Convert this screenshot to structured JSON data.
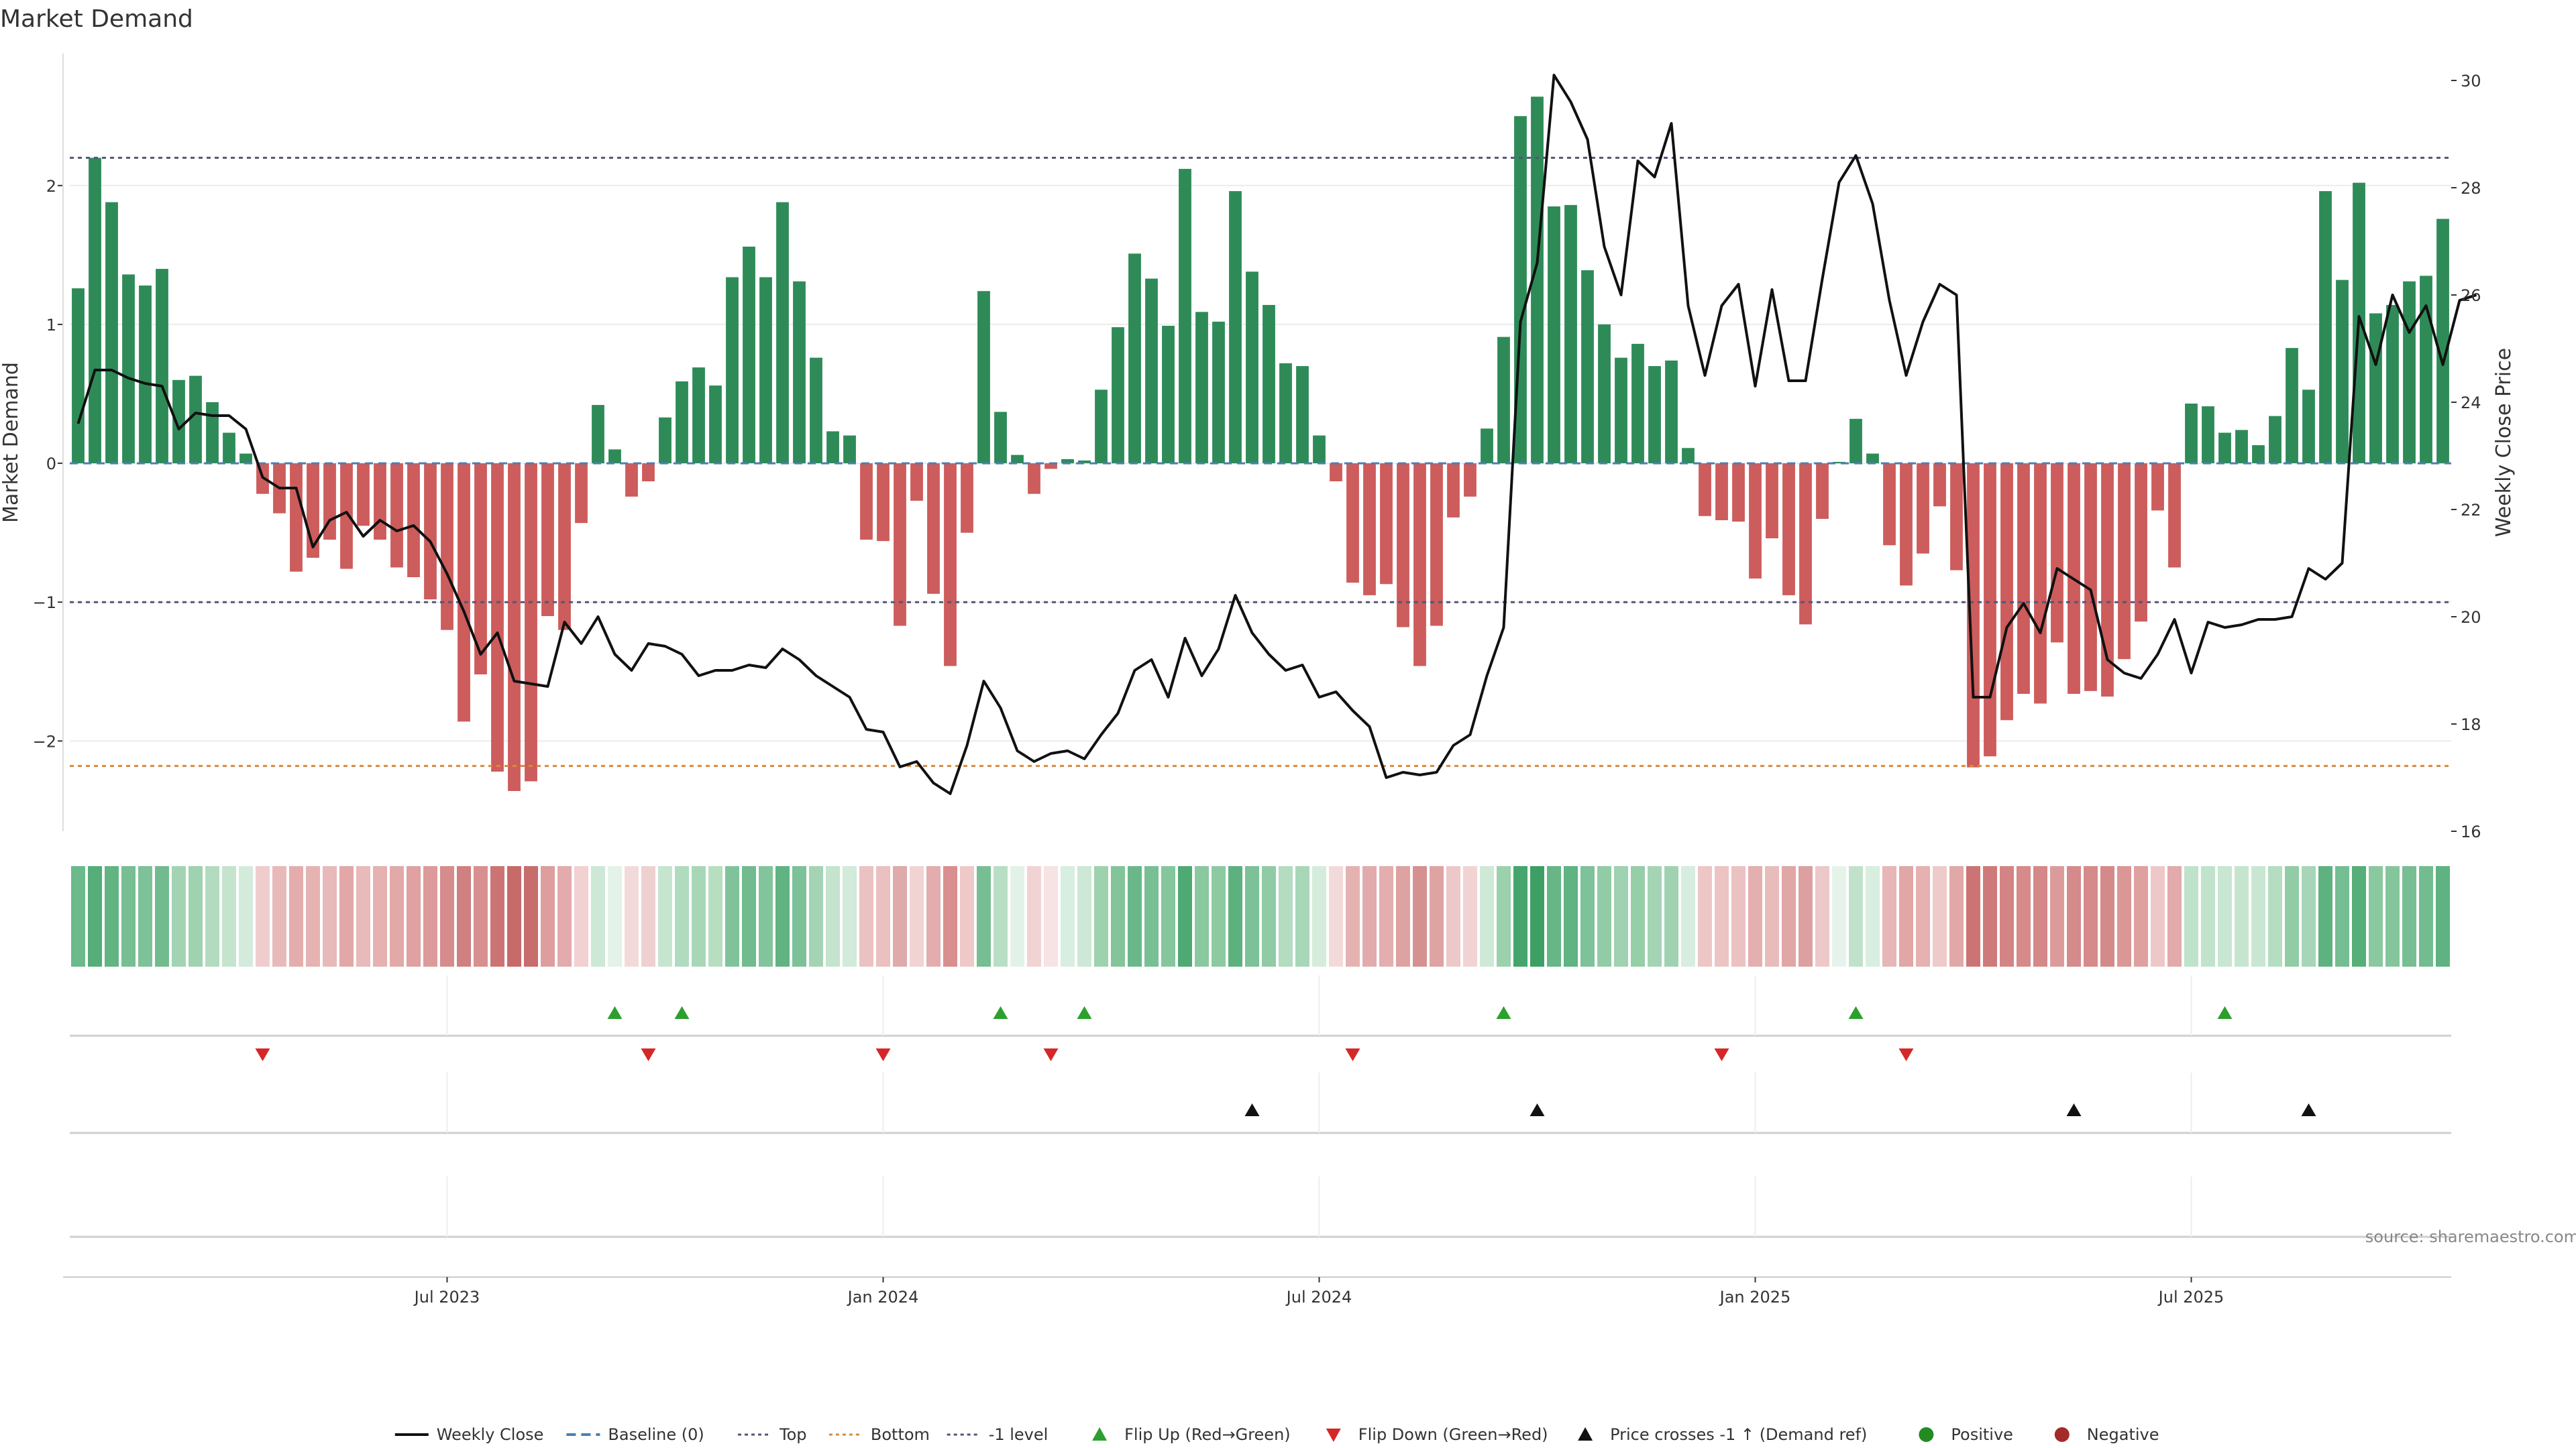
{
  "chart_data": {
    "type": "bar",
    "title": "Market Demand",
    "ylabel_left": "Market Demand",
    "ylabel_right": "Weekly Close Price",
    "source": "source: sharemaestro.com",
    "ylim_left": [
      -2.65,
      2.95
    ],
    "ylim_right": [
      16,
      30.5
    ],
    "yticks_left": [
      {
        "value": -2,
        "label": "−2"
      },
      {
        "value": -1,
        "label": "−1"
      },
      {
        "value": 0,
        "label": "0"
      },
      {
        "value": 1,
        "label": "1"
      },
      {
        "value": 2,
        "label": "2"
      }
    ],
    "yticks_right": [
      {
        "value": 16,
        "label": "16"
      },
      {
        "value": 18,
        "label": "18"
      },
      {
        "value": 20,
        "label": "20"
      },
      {
        "value": 22,
        "label": "22"
      },
      {
        "value": 24,
        "label": "24"
      },
      {
        "value": 26,
        "label": "26"
      },
      {
        "value": 28,
        "label": "28"
      },
      {
        "value": 30,
        "label": "30"
      }
    ],
    "x_ticks": [
      {
        "index": 22,
        "label": "Jul 2023"
      },
      {
        "index": 48,
        "label": "Jan 2024"
      },
      {
        "index": 74,
        "label": "Jul 2024"
      },
      {
        "index": 100,
        "label": "Jan 2025"
      },
      {
        "index": 126,
        "label": "Jul 2025"
      }
    ],
    "reference_lines": [
      {
        "name": "Top",
        "value": 2.2,
        "color": "#555577",
        "dash": "6,6"
      },
      {
        "name": "-1 level",
        "value": -1,
        "color": "#555577",
        "dash": "6,6"
      },
      {
        "name": "Bottom",
        "value": -2.18,
        "color": "#d98a3a",
        "dash": "6,6"
      }
    ],
    "colors": {
      "positive": "#2e8b57",
      "negative": "#cd5c5c",
      "close": "#111111",
      "baseline": "#4a7fb5",
      "flip_up": "#2ca02c",
      "flip_down": "#d62728",
      "cross": "#111111",
      "positive_dot": "#228b22",
      "negative_dot": "#a52a2a"
    },
    "series": [
      {
        "name": "Market Demand",
        "values": [
          1.26,
          2.2,
          1.88,
          1.36,
          1.28,
          1.4,
          0.6,
          0.63,
          0.44,
          0.22,
          0.07,
          -0.22,
          -0.36,
          -0.78,
          -0.68,
          -0.55,
          -0.76,
          -0.45,
          -0.55,
          -0.75,
          -0.82,
          -0.98,
          -1.2,
          -1.86,
          -1.52,
          -2.22,
          -2.36,
          -2.29,
          -1.1,
          -1.2,
          -0.43,
          0.42,
          0.1,
          -0.24,
          -0.13,
          0.33,
          0.59,
          0.69,
          0.56,
          1.34,
          1.56,
          1.34,
          1.88,
          1.31,
          0.76,
          0.23,
          0.2,
          -0.55,
          -0.56,
          -1.17,
          -0.27,
          -0.94,
          -1.46,
          -0.5,
          1.24,
          0.37,
          0.06,
          -0.22,
          -0.04,
          0.03,
          0.02,
          0.53,
          0.98,
          1.51,
          1.33,
          0.99,
          2.12,
          1.09,
          1.02,
          1.96,
          1.38,
          1.14,
          0.72,
          0.7,
          0.2,
          -0.13,
          -0.86,
          -0.95,
          -0.87,
          -1.18,
          -1.46,
          -1.17,
          -0.39,
          -0.24,
          0.25,
          0.91,
          2.5,
          2.64,
          1.85,
          1.86,
          1.39,
          1.0,
          0.76,
          0.86,
          0.7,
          0.74,
          0.11,
          -0.38,
          -0.41,
          -0.42,
          -0.83,
          -0.54,
          -0.95,
          -1.16,
          -0.4,
          0.01,
          0.32,
          0.07,
          -0.59,
          -0.88,
          -0.65,
          -0.31,
          -0.77,
          -2.19,
          -2.11,
          -1.85,
          -1.66,
          -1.73,
          -1.29,
          -1.66,
          -1.64,
          -1.68,
          -1.41,
          -1.14,
          -0.34,
          -0.75,
          0.43,
          0.41,
          0.22,
          0.24,
          0.13,
          0.34,
          0.83,
          0.53,
          1.96,
          1.32,
          2.02,
          1.08,
          1.14,
          1.31,
          1.35,
          1.76
        ]
      },
      {
        "name": "Weekly Close",
        "values": [
          23.6,
          24.6,
          24.6,
          24.45,
          24.35,
          24.3,
          23.5,
          23.8,
          23.75,
          23.75,
          23.5,
          22.6,
          22.4,
          22.4,
          21.3,
          21.8,
          21.95,
          21.5,
          21.8,
          21.6,
          21.7,
          21.4,
          20.8,
          20.1,
          19.3,
          19.7,
          18.8,
          18.75,
          18.7,
          19.9,
          19.5,
          20.0,
          19.3,
          19.0,
          19.5,
          19.45,
          19.3,
          18.9,
          19.0,
          19.0,
          19.1,
          19.05,
          19.4,
          19.2,
          18.9,
          18.7,
          18.5,
          17.9,
          17.85,
          17.2,
          17.3,
          16.9,
          16.7,
          17.6,
          18.8,
          18.3,
          17.5,
          17.3,
          17.45,
          17.5,
          17.35,
          17.8,
          18.2,
          19.0,
          19.2,
          18.5,
          19.6,
          18.9,
          19.4,
          20.4,
          19.7,
          19.3,
          19.0,
          19.1,
          18.5,
          18.6,
          18.25,
          17.95,
          17.0,
          17.1,
          17.05,
          17.1,
          17.6,
          17.8,
          18.9,
          19.8,
          25.5,
          26.6,
          30.1,
          29.6,
          28.9,
          26.9,
          26.0,
          28.5,
          28.2,
          29.2,
          25.8,
          24.5,
          25.8,
          26.2,
          24.3,
          26.1,
          24.4,
          24.4,
          26.3,
          28.1,
          28.6,
          27.7,
          25.9,
          24.5,
          25.5,
          26.2,
          26.0,
          18.5,
          18.5,
          19.8,
          20.25,
          19.7,
          20.9,
          20.7,
          20.5,
          19.2,
          18.95,
          18.85,
          19.3,
          19.95,
          18.95,
          19.9,
          19.8,
          19.85,
          19.95,
          19.95,
          20.0,
          20.9,
          20.7,
          21.0,
          25.6,
          24.7,
          26.0,
          25.3,
          25.8,
          24.7,
          25.9,
          26.0
        ]
      }
    ],
    "heat_strip": [
      "#6cb98b",
      "#55ad78",
      "#62b483",
      "#77be93",
      "#7ec29a",
      "#72bb8f",
      "#a2d4b3",
      "#9fd2b0",
      "#b2dbc0",
      "#c4e4ce",
      "#d3ebdb",
      "#f0cdcd",
      "#e8b9b9",
      "#e4adad",
      "#e6b3b3",
      "#e8b9b9",
      "#e2a8a8",
      "#e8baba",
      "#e5b1b1",
      "#e2a9a9",
      "#dfa1a1",
      "#dc9a9a",
      "#d68c8c",
      "#d08080",
      "#d88f8f",
      "#cc7474",
      "#c76a6a",
      "#c86c6c",
      "#de9e9e",
      "#e3abab",
      "#f1d1d1",
      "#cde8d6",
      "#e4f2e9",
      "#f3dada",
      "#efd0d0",
      "#c6e5cf",
      "#b0dbbf",
      "#a8d7b8",
      "#b7debf",
      "#80c39a",
      "#71bb8e",
      "#82c49b",
      "#61b382",
      "#7dc198",
      "#a4d4b4",
      "#c4e4ce",
      "#d1eada",
      "#ebc2c2",
      "#eac0c0",
      "#deaaaa",
      "#f2d3d3",
      "#e3adad",
      "#d98f8f",
      "#efc8c8",
      "#78be94",
      "#b8dfc5",
      "#e3f2e8",
      "#f2d3d3",
      "#f7e3e3",
      "#d8eee0",
      "#cde8d6",
      "#9ed2af",
      "#83c49b",
      "#6ab889",
      "#79bf95",
      "#86c69d",
      "#4ea973",
      "#8ac8a0",
      "#8dca a2",
      "#5db17f",
      "#7cc198",
      "#90cba5",
      "#b3dcc1",
      "#a8d7b8",
      "#d5ecdc",
      "#f3dada",
      "#e5b2b2",
      "#e2abab",
      "#e4aeae",
      "#dda2a2",
      "#d59090",
      "#dea3a3",
      "#edc8c8",
      "#f2d3d3",
      "#cfe9d7",
      "#9cd1ad",
      "#46a56c",
      "#3d9f64",
      "#66b686",
      "#60b382",
      "#7ec29a",
      "#92cca6",
      "#9fd2b0",
      "#96cea8",
      "#a4d4b4",
      "#a0d2b1",
      "#d7eddf",
      "#edc6c6",
      "#ecc4c4",
      "#ebc2c2",
      "#e4afaf",
      "#e9bcbc",
      "#e1a6a6",
      "#dda0a0",
      "#edc8c8",
      "#e6f3ea",
      "#c0e2cb",
      "#d8eee0",
      "#e7b6b6",
      "#e1a7a7",
      "#e6b1b1",
      "#efcaca",
      "#e1a8a8",
      "#cc7474",
      "#cf7a7a",
      "#d38484",
      "#d68a8a",
      "#d48888",
      "#dc9b9b",
      "#d58b8b",
      "#d68a8a",
      "#d58a8a",
      "#db9696",
      "#dfa0a0",
      "#eec8c8",
      "#e2aaaa",
      "#bfe2ca",
      "#c1e3cc",
      "#c8e6d1",
      "#c6e5cf",
      "#c9e6d3",
      "#b5ddc2",
      "#92cca6",
      "#a6d6b7",
      "#5eb280",
      "#75bd92",
      "#56ae79",
      "#8ac8a0",
      "#85c59c",
      "#77be93",
      "#73bc90",
      "#5fb281"
    ],
    "flip_up_indices": [
      32,
      36,
      55,
      60,
      85,
      106,
      128
    ],
    "flip_down_indices": [
      11,
      34,
      48,
      58,
      76,
      98,
      109
    ],
    "cross_indices": [
      70,
      87,
      119,
      133
    ],
    "legend": [
      {
        "key": "close",
        "label": "Weekly Close"
      },
      {
        "key": "baseline",
        "label": "Baseline (0)"
      },
      {
        "key": "top",
        "label": "Top"
      },
      {
        "key": "bottom",
        "label": "Bottom"
      },
      {
        "key": "minus1",
        "label": "-1 level"
      },
      {
        "key": "flip_up",
        "label": "Flip Up (Red→Green)"
      },
      {
        "key": "flip_down",
        "label": "Flip Down (Green→Red)"
      },
      {
        "key": "cross",
        "label": "Price crosses -1 ↑ (Demand ref)"
      },
      {
        "key": "positive",
        "label": "Positive"
      },
      {
        "key": "negative",
        "label": "Negative"
      }
    ]
  }
}
